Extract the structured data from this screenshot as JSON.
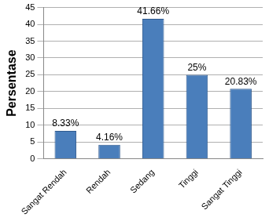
{
  "chart_data": {
    "type": "bar",
    "y_label": "Persentase",
    "categories": [
      "Sangat Rendah",
      "Rendah",
      "Sedang",
      "Tinggi",
      "Sangat Tinggi"
    ],
    "values": [
      8.33,
      4.16,
      41.66,
      25,
      20.83
    ],
    "value_labels": [
      "8.33%",
      "4.16%",
      "41.66%",
      "25%",
      "20.83%"
    ],
    "data_labels": true,
    "color": "#4a7ebb",
    "ylim": [
      0,
      45
    ],
    "yticks": [
      0,
      5,
      10,
      15,
      20,
      25,
      30,
      35,
      40,
      45
    ],
    "grid": true
  }
}
